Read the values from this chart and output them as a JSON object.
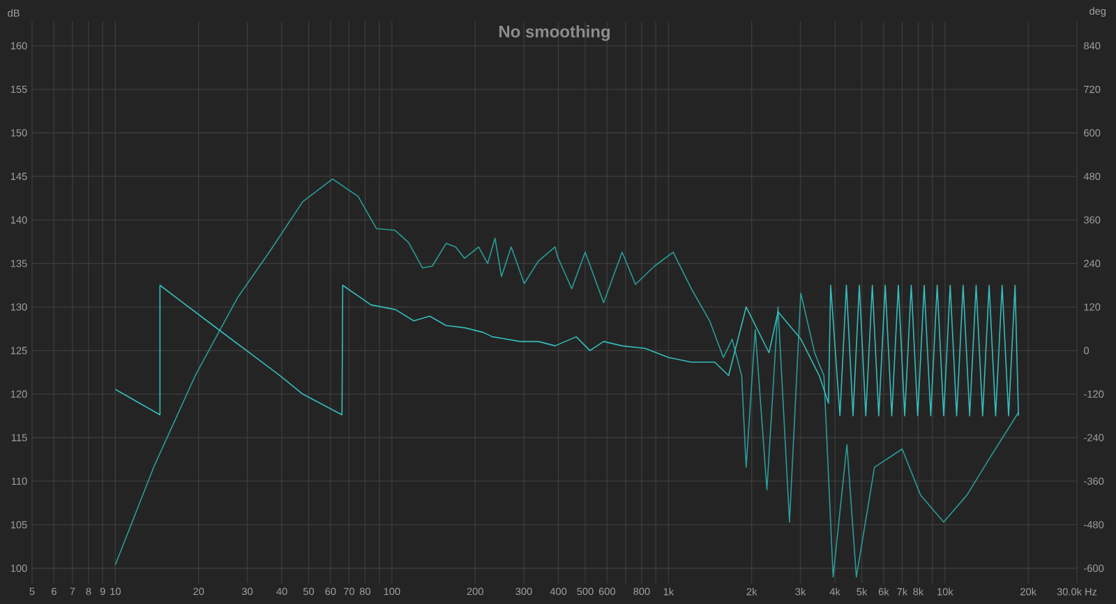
{
  "chart_data": {
    "type": "line",
    "title": "No smoothing",
    "ylabel": "dB",
    "y2label": "deg",
    "xlim": [
      5,
      30000
    ],
    "ylim": [
      98.3,
      162.8
    ],
    "y2lim": [
      -640.8,
      907.2
    ],
    "log": "x",
    "grid": true,
    "xticks": [
      5,
      6,
      7,
      8,
      9,
      10,
      20,
      30,
      40,
      50,
      60,
      70,
      80,
      {
        "value": 90,
        "label": null
      },
      100,
      200,
      300,
      400,
      500,
      600,
      {
        "value": 700,
        "label": null
      },
      800,
      {
        "value": 900,
        "label": null
      },
      {
        "value": 1000,
        "label": "1k"
      },
      {
        "value": 2000,
        "label": "2k"
      },
      {
        "value": 3000,
        "label": "3k"
      },
      {
        "value": 4000,
        "label": "4k"
      },
      {
        "value": 5000,
        "label": "5k"
      },
      {
        "value": 6000,
        "label": "6k"
      },
      {
        "value": 7000,
        "label": "7k"
      },
      {
        "value": 8000,
        "label": "8k"
      },
      {
        "value": 9000,
        "label": null
      },
      {
        "value": 10000,
        "label": "10k"
      },
      {
        "value": 20000,
        "label": "20k"
      },
      {
        "value": 30000,
        "label": "30.0k Hz"
      }
    ],
    "yticks": [
      100,
      105,
      110,
      115,
      120,
      125,
      130,
      135,
      140,
      145,
      150,
      155,
      160
    ],
    "y2ticks": [
      -600,
      -480,
      -360,
      -240,
      -120,
      0,
      120,
      240,
      360,
      480,
      600,
      720,
      840
    ],
    "series": [
      {
        "color": "#2a9d98",
        "x": [
          10,
          13.8,
          19.5,
          27.7,
          36.2,
          47.6,
          61,
          75.5,
          88,
          102.7,
          115,
          129,
          140,
          157,
          170,
          183,
          206,
          222,
          236,
          249,
          270,
          301,
          339,
          389,
          397,
          447,
          500,
          583,
          680,
          760,
          890,
          1040,
          1210,
          1410,
          1580,
          1700,
          1840,
          1910,
          2060,
          2270,
          2490,
          2740,
          3010,
          3380,
          3650,
          3940,
          4420,
          4780,
          5560,
          7000,
          8160,
          9890,
          12000,
          14540,
          17620,
          18440
        ],
        "values": [
          100.4,
          111.7,
          122.2,
          131.1,
          136.4,
          142.1,
          144.7,
          142.7,
          139.0,
          138.8,
          137.4,
          134.5,
          134.7,
          137.3,
          136.9,
          135.6,
          136.9,
          135.0,
          137.9,
          133.5,
          136.9,
          132.7,
          135.3,
          136.9,
          135.8,
          132.1,
          136.3,
          130.5,
          136.3,
          132.6,
          134.7,
          136.3,
          132.1,
          128.4,
          124.2,
          126.3,
          122.1,
          111.6,
          127.4,
          109.0,
          130.0,
          105.3,
          131.6,
          124.7,
          122.1,
          99.0,
          114.2,
          99.0,
          111.6,
          113.7,
          108.4,
          105.3,
          108.4,
          112.7,
          116.9,
          117.9
        ]
      },
      {
        "color": "#35bdbd",
        "axis": "y2",
        "x": [
          10,
          14.5,
          14.5,
          23.7,
          39.4,
          47.6,
          66,
          66.4,
          84,
          103,
          120,
          137,
          157,
          183,
          214,
          231,
          249,
          291,
          339,
          389,
          464,
          520,
          583,
          680,
          824,
          1000,
          1210,
          1470,
          1650,
          1910,
          2310,
          2490,
          3010,
          3510,
          3790,
          3860,
          4170,
          4400,
          4650,
          4900,
          5170,
          5460,
          5760,
          6080,
          6420,
          6780,
          7150,
          7550,
          7970,
          8410,
          8880,
          9370,
          9890,
          10440,
          11020,
          11630,
          12280,
          12960,
          13680,
          14440,
          15240,
          16090,
          16980,
          17920,
          18440
        ],
        "values": [
          -107,
          -177,
          180,
          57,
          -69,
          -120,
          -177,
          180,
          126,
          113,
          82,
          95,
          69,
          63,
          50,
          38,
          34,
          25,
          25,
          13,
          38,
          0,
          25,
          13,
          6,
          -19,
          -32,
          -32,
          -69,
          120,
          -6,
          107,
          32,
          -69,
          -145,
          180,
          -180,
          180,
          -180,
          180,
          -180,
          180,
          -180,
          180,
          -180,
          180,
          -180,
          180,
          -180,
          180,
          -180,
          180,
          -180,
          180,
          -180,
          180,
          -180,
          180,
          -180,
          180,
          -180,
          180,
          -180,
          180,
          -180
        ]
      }
    ]
  }
}
